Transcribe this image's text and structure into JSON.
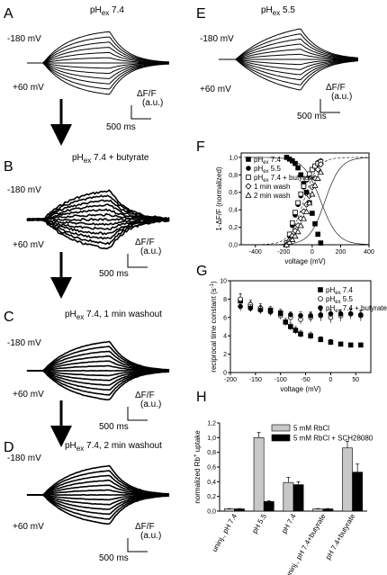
{
  "panels": {
    "A": {
      "letter": "A",
      "title": "pH",
      "title_sub": "ex",
      "title_rest": " 7.4",
      "v_top": "-180 mV",
      "v_bot": "+60 mV",
      "scale_y": "ΔF/F",
      "scale_y2": "(a.u.)",
      "scale_x": "500 ms"
    },
    "B": {
      "letter": "B",
      "title": "pH",
      "title_sub": "ex",
      "title_rest": " 7.4 + butyrate",
      "v_top": "-180 mV",
      "v_bot": "+60 mV",
      "scale_y": "ΔF/F",
      "scale_y2": "(a.u.)",
      "scale_x": "500 ms"
    },
    "C": {
      "letter": "C",
      "title": "pH",
      "title_sub": "ex",
      "title_rest": " 7.4, 1 min washout",
      "v_top": "-180 mV",
      "v_bot": "+60 mV",
      "scale_y": "ΔF/F",
      "scale_y2": "(a.u.)",
      "scale_x": "500 ms"
    },
    "D": {
      "letter": "D",
      "title": "pH",
      "title_sub": "ex",
      "title_rest": " 7.4, 2 min washout",
      "v_top": "-180 mV",
      "v_bot": "+60 mV",
      "scale_y": "ΔF/F",
      "scale_y2": "(a.u.)",
      "scale_x": "500 ms"
    },
    "E": {
      "letter": "E",
      "title": "pH",
      "title_sub": "ex",
      "title_rest": " 5.5",
      "v_top": "-180 mV",
      "v_bot": "+60 mV",
      "scale_y": "ΔF/F",
      "scale_y2": "(a.u.)",
      "scale_x": "500 ms"
    },
    "F": {
      "letter": "F"
    },
    "G": {
      "letter": "G"
    },
    "H": {
      "letter": "H"
    }
  },
  "chart_data": [
    {
      "id": "F",
      "type": "scatter",
      "xlabel": "voltage (mV)",
      "ylabel": "1-ΔF/F (normalized)",
      "xlim": [
        -500,
        400
      ],
      "ylim": [
        0,
        1.05
      ],
      "xticks": [
        "-400",
        "-200",
        "0",
        "200",
        "400"
      ],
      "yticks": [
        "0,0",
        "0,2",
        "0,4",
        "0,6",
        "0,8",
        "1,0"
      ],
      "legend_position": "top-left",
      "series": [
        {
          "name": "pH",
          "name_sub": "ex",
          "name_rest": " 7.4",
          "marker": "filled-square",
          "x": [
            -180,
            -160,
            -140,
            -120,
            -100,
            -80,
            -60,
            -40,
            -20,
            0,
            20,
            40,
            60
          ],
          "y": [
            1.0,
            0.98,
            0.96,
            0.93,
            0.88,
            0.8,
            0.7,
            0.6,
            0.48,
            0.36,
            0.24,
            0.12,
            0.02
          ]
        },
        {
          "name": "pH",
          "name_sub": "ex",
          "name_rest": " 5.5",
          "marker": "filled-circle",
          "x": [
            -180,
            -160,
            -140,
            -120,
            -100,
            -80,
            -60,
            -40,
            -20,
            0,
            20,
            40,
            60
          ],
          "y": [
            0.0,
            0.1,
            0.22,
            0.34,
            0.46,
            0.56,
            0.66,
            0.74,
            0.8,
            0.86,
            0.9,
            0.94,
            0.96
          ]
        },
        {
          "name": "pH",
          "name_sub": "ex",
          "name_rest": " 7.4 + butyrate",
          "marker": "open-square",
          "x": [
            -180,
            -160,
            -140,
            -120,
            -100,
            -80,
            -60,
            -40,
            -20,
            0,
            20,
            40,
            60
          ],
          "y": [
            0.02,
            0.12,
            0.25,
            0.37,
            0.48,
            0.58,
            0.67,
            0.75,
            0.81,
            0.86,
            0.9,
            0.93,
            0.95
          ]
        },
        {
          "name": "1 min wash",
          "marker": "open-diamond",
          "x": [
            -180,
            -160,
            -140,
            -120,
            -100,
            -80,
            -60,
            -40,
            -20,
            0,
            20,
            40,
            60
          ],
          "y": [
            0.0,
            0.05,
            0.1,
            0.16,
            0.22,
            0.3,
            0.38,
            0.46,
            0.56,
            0.66,
            0.76,
            0.86,
            0.92
          ]
        },
        {
          "name": "2 min wash",
          "marker": "open-triangle",
          "x": [
            -180,
            -160,
            -140,
            -120,
            -100,
            -80,
            -60,
            -40,
            -20,
            0,
            20,
            40,
            60
          ],
          "y": [
            0.0,
            0.03,
            0.06,
            0.1,
            0.15,
            0.22,
            0.3,
            0.38,
            0.48,
            0.58,
            0.68,
            0.76,
            0.83
          ]
        }
      ]
    },
    {
      "id": "G",
      "type": "scatter",
      "xlabel": "voltage (mV)",
      "ylabel": "reciprocal time constant (s",
      "ylabel_sup": "-1",
      "ylabel_end": ")",
      "xlim": [
        -200,
        80
      ],
      "ylim": [
        0,
        10
      ],
      "xticks": [
        "-200",
        "-150",
        "-100",
        "-50",
        "0",
        "50"
      ],
      "yticks": [
        "0",
        "2",
        "4",
        "6",
        "8",
        "10"
      ],
      "legend_position": "right",
      "series": [
        {
          "name": "pH",
          "name_sub": "ex",
          "name_rest": " 7.4",
          "marker": "filled-square",
          "x": [
            -180,
            -160,
            -140,
            -120,
            -100,
            -90,
            -80,
            -70,
            -60,
            -40,
            -20,
            0,
            20,
            40,
            60
          ],
          "y": [
            7.8,
            7.2,
            6.9,
            6.8,
            6.5,
            5.5,
            5.0,
            4.6,
            4.2,
            4.0,
            3.6,
            3.3,
            3.1,
            3.0,
            3.0
          ],
          "err": [
            0.8,
            0.5,
            0.4,
            0.4,
            0.4,
            0.4,
            0.4,
            0.4,
            0.4,
            0.4,
            0.3,
            0.3,
            0.2,
            0.2,
            0.2
          ]
        },
        {
          "name": "pH",
          "name_sub": "ex",
          "name_rest": " 5.5",
          "marker": "open-circle",
          "x": [
            -180,
            -160,
            -140,
            -120,
            -100,
            -80,
            -60,
            -40,
            -20,
            0,
            20,
            40,
            60
          ],
          "y": [
            8.0,
            7.4,
            7.0,
            6.6,
            6.2,
            6.0,
            5.8,
            6.0,
            6.2,
            6.0,
            6.2,
            6.4,
            6.2
          ],
          "err": [
            0.6,
            0.5,
            0.5,
            0.4,
            0.4,
            0.5,
            0.5,
            0.5,
            0.6,
            0.6,
            0.6,
            0.6,
            0.6
          ]
        },
        {
          "name": "pH",
          "name_sub": "ex",
          "name_rest": " 7.4 + butyrate",
          "marker": "filled-circle",
          "x": [
            -180,
            -160,
            -140,
            -120,
            -100,
            -80,
            -60,
            -40,
            -20,
            0,
            20,
            40,
            60
          ],
          "y": [
            7.2,
            7.0,
            6.8,
            6.6,
            6.4,
            6.3,
            6.2,
            6.2,
            6.3,
            6.4,
            6.4,
            6.4,
            6.3
          ],
          "err": [
            0.5,
            0.4,
            0.4,
            0.3,
            0.3,
            0.3,
            0.4,
            0.4,
            0.4,
            0.4,
            0.4,
            0.4,
            0.4
          ]
        }
      ]
    },
    {
      "id": "H",
      "type": "bar",
      "ylabel": "normalized Rb",
      "ylabel_sup": "+",
      "ylabel_end": " uptake",
      "ylim": [
        0,
        1.2
      ],
      "yticks": [
        "0,0",
        "0,2",
        "0,4",
        "0,6",
        "0,8",
        "1,0",
        "1,2"
      ],
      "categories": [
        "uninj., pH 7.4",
        "pH 5.5",
        "pH 7.4",
        "uninj., pH 7.4+butyrate",
        "pH 7.4+butyrate"
      ],
      "legend_position": "top-right",
      "series": [
        {
          "name": "5 mM RbCl",
          "color": "#c8c8c8",
          "values": [
            0.03,
            1.0,
            0.39,
            0.03,
            0.86
          ],
          "err": [
            0.005,
            0.07,
            0.07,
            0.005,
            0.09
          ]
        },
        {
          "name": "5 mM RbCl + SCH28080",
          "color": "#000000",
          "values": [
            0.03,
            0.13,
            0.36,
            0.03,
            0.53
          ],
          "err": [
            0.005,
            0.01,
            0.04,
            0.005,
            0.11
          ]
        }
      ]
    }
  ]
}
